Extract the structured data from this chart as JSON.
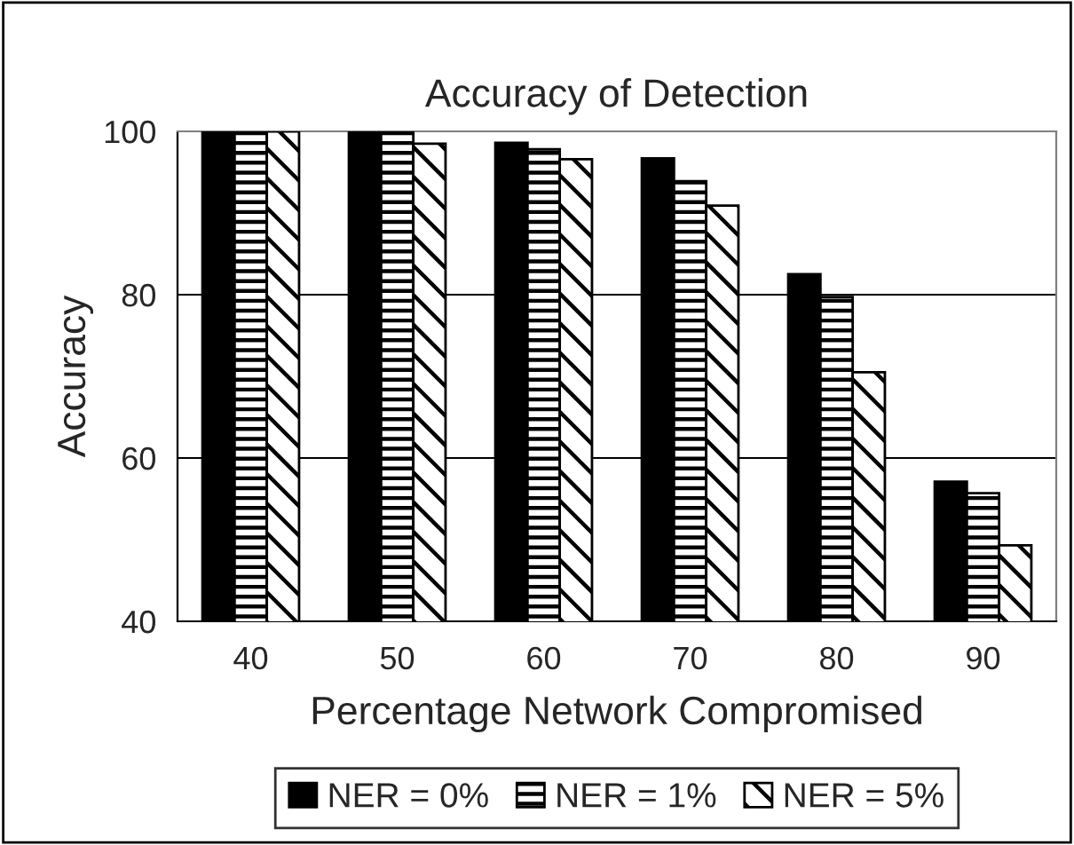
{
  "chart_data": {
    "type": "bar",
    "title": "Accuracy of Detection",
    "xlabel": "Percentage Network Compromised",
    "ylabel": "Accuracy",
    "categories": [
      "40",
      "50",
      "60",
      "70",
      "80",
      "90"
    ],
    "series": [
      {
        "name": "NER = 0%",
        "color": "#000000",
        "values": [
          100,
          100,
          98.6,
          96.7,
          82.5,
          57.1
        ]
      },
      {
        "name": "NER = 1%",
        "color": "#000000",
        "values": [
          100,
          100,
          97.8,
          93.9,
          79.7,
          55.7
        ]
      },
      {
        "name": "NER = 5%",
        "color": "#000000",
        "values": [
          100,
          98.5,
          96.6,
          90.9,
          70.5,
          49.3
        ]
      }
    ],
    "ylim": [
      40,
      100
    ],
    "yticks": [
      40,
      60,
      80,
      100
    ],
    "grid": "y",
    "legend": "bottom"
  }
}
